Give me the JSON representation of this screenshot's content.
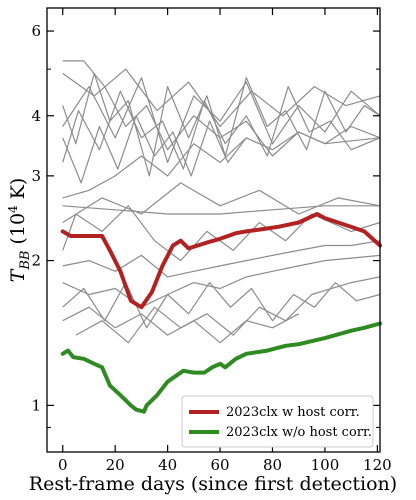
{
  "chart_data": {
    "type": "line",
    "xlabel": "Rest-frame days (since first detection)",
    "ylabel": {
      "main": "T",
      "sub": "BB",
      "rest": " (10",
      "sup": "4",
      "end": " K)"
    },
    "xlim": [
      -6,
      121
    ],
    "ylim": [
      0.8,
      6.7
    ],
    "yscale": "log",
    "grid": false,
    "x_ticks": [
      0,
      20,
      40,
      60,
      80,
      100,
      120
    ],
    "y_ticks": [
      1,
      2,
      3,
      4,
      6
    ],
    "legend_position": "lower-right",
    "series": [
      {
        "name": "2023clx w host corr.",
        "color": "#b22222",
        "x": [
          0,
          3,
          8,
          15,
          18,
          22,
          26,
          30,
          34,
          38,
          42,
          45,
          48,
          55,
          60,
          66,
          70,
          75,
          82,
          90,
          97,
          100,
          105,
          110,
          115,
          121
        ],
        "y": [
          2.3,
          2.25,
          2.25,
          2.25,
          2.1,
          1.9,
          1.65,
          1.6,
          1.72,
          1.95,
          2.15,
          2.2,
          2.12,
          2.18,
          2.22,
          2.28,
          2.3,
          2.32,
          2.35,
          2.4,
          2.5,
          2.45,
          2.4,
          2.35,
          2.3,
          2.15
        ]
      },
      {
        "name": "2023clx w/o host corr.",
        "color": "#2e8b22",
        "x": [
          0,
          2,
          4,
          8,
          12,
          15,
          18,
          22,
          26,
          28,
          31,
          32,
          36,
          40,
          43,
          46,
          50,
          54,
          57,
          60,
          62,
          66,
          70,
          78,
          85,
          90,
          100,
          110,
          115,
          121
        ],
        "y": [
          1.28,
          1.3,
          1.26,
          1.25,
          1.22,
          1.2,
          1.1,
          1.05,
          1.0,
          0.98,
          0.97,
          1.0,
          1.05,
          1.12,
          1.15,
          1.18,
          1.17,
          1.17,
          1.2,
          1.22,
          1.2,
          1.25,
          1.28,
          1.3,
          1.33,
          1.34,
          1.38,
          1.43,
          1.45,
          1.48
        ]
      }
    ],
    "background_series": [
      {
        "color": "#8c8c8c",
        "x": [
          0,
          10,
          20,
          30,
          40,
          50,
          60,
          70,
          80,
          90,
          100,
          110,
          121
        ],
        "y": [
          3.8,
          4.6,
          3.6,
          4.8,
          3.2,
          4.4,
          3.9,
          4.7,
          3.5,
          4.2,
          3.7,
          4.5,
          4.0
        ]
      },
      {
        "color": "#8c8c8c",
        "x": [
          0,
          5,
          12,
          18,
          25,
          33,
          40,
          48,
          55,
          62,
          70,
          78,
          85,
          93,
          100,
          108,
          115,
          121
        ],
        "y": [
          4.2,
          3.5,
          4.9,
          3.9,
          4.3,
          3.0,
          4.6,
          3.6,
          4.4,
          3.3,
          4.8,
          3.8,
          4.1,
          3.4,
          4.5,
          3.7,
          4.2,
          4.0
        ]
      },
      {
        "color": "#8c8c8c",
        "x": [
          0,
          6,
          14,
          22,
          30,
          38,
          46,
          54,
          62,
          70,
          78,
          86,
          94,
          102,
          110,
          121
        ],
        "y": [
          3.2,
          4.1,
          3.4,
          4.5,
          3.6,
          3.9,
          3.1,
          4.3,
          3.5,
          4.0,
          3.3,
          4.6,
          3.7,
          3.9,
          3.4,
          3.6
        ]
      },
      {
        "color": "#8c8c8c",
        "x": [
          0,
          8,
          16,
          24,
          32,
          40,
          50,
          60,
          70,
          80,
          90,
          100,
          110,
          121
        ],
        "y": [
          5.2,
          5.2,
          4.6,
          3.8,
          4.2,
          3.4,
          4.0,
          3.6,
          3.9,
          3.3,
          3.7,
          3.5,
          3.8,
          3.6
        ]
      },
      {
        "color": "#8c8c8c",
        "x": [
          0,
          10,
          20,
          30,
          40,
          50,
          60,
          70,
          80,
          90,
          100,
          121
        ],
        "y": [
          2.7,
          2.8,
          3.0,
          3.3,
          3.0,
          3.5,
          3.2,
          3.6,
          3.4,
          3.7,
          3.5,
          3.6
        ]
      },
      {
        "color": "#8c8c8c",
        "x": [
          0,
          20,
          40,
          60,
          80,
          100,
          121
        ],
        "y": [
          2.6,
          2.55,
          2.5,
          2.5,
          2.55,
          2.6,
          2.6
        ]
      },
      {
        "color": "#8c8c8c",
        "x": [
          0,
          15,
          30,
          45,
          60,
          75,
          90,
          105,
          121
        ],
        "y": [
          2.4,
          2.7,
          2.5,
          2.9,
          2.6,
          2.8,
          2.5,
          2.7,
          2.6
        ]
      },
      {
        "color": "#8c8c8c",
        "x": [
          0,
          5,
          15,
          25,
          35,
          45,
          55,
          65,
          75,
          85,
          95,
          110,
          121
        ],
        "y": [
          2.1,
          2.5,
          2.3,
          2.6,
          2.2,
          2.0,
          2.3,
          2.1,
          2.4,
          2.2,
          2.5,
          2.3,
          2.4
        ]
      },
      {
        "color": "#8c8c8c",
        "x": [
          0,
          10,
          20,
          30,
          40,
          50,
          60,
          70,
          80,
          90,
          100,
          110,
          121
        ],
        "y": [
          1.95,
          2.0,
          1.9,
          2.05,
          1.85,
          1.9,
          1.95,
          2.0,
          2.05,
          2.1,
          2.15,
          2.15,
          2.2
        ]
      },
      {
        "color": "#8c8c8c",
        "x": [
          0,
          10,
          20,
          30,
          40,
          50,
          60,
          70,
          80,
          90,
          100,
          121
        ],
        "y": [
          1.8,
          1.7,
          1.75,
          1.6,
          1.7,
          1.8,
          1.75,
          1.85,
          1.9,
          1.95,
          2.0,
          2.05
        ]
      },
      {
        "color": "#8c8c8c",
        "x": [
          0,
          8,
          16,
          24,
          32,
          40,
          48,
          56,
          64,
          72,
          80,
          88,
          96,
          104,
          112,
          121
        ],
        "y": [
          1.6,
          1.75,
          1.5,
          1.8,
          1.45,
          1.7,
          1.55,
          1.8,
          1.6,
          1.75,
          1.5,
          1.7,
          1.6,
          1.8,
          1.65,
          1.7
        ]
      },
      {
        "color": "#8c8c8c",
        "x": [
          0,
          10,
          20,
          30,
          40,
          50,
          60,
          70,
          80,
          90
        ],
        "y": [
          1.5,
          1.6,
          1.45,
          1.55,
          1.4,
          1.5,
          1.35,
          1.5,
          1.45,
          1.55
        ]
      },
      {
        "color": "#8c8c8c",
        "x": [
          5,
          15,
          25,
          35,
          45,
          55,
          65,
          75,
          85,
          95,
          110,
          121
        ],
        "y": [
          1.4,
          1.5,
          1.35,
          1.6,
          1.45,
          1.55,
          1.4,
          1.6,
          1.5,
          1.7,
          1.8,
          1.85
        ]
      },
      {
        "color": "#8c8c8c",
        "x": [
          0,
          12,
          24,
          36,
          48,
          60,
          72,
          84,
          96,
          108,
          121
        ],
        "y": [
          4.9,
          4.4,
          5.0,
          4.1,
          4.7,
          3.8,
          4.5,
          4.0,
          4.6,
          4.2,
          4.4
        ]
      },
      {
        "color": "#8c8c8c",
        "x": [
          0,
          7,
          14,
          21,
          28,
          35,
          42,
          49,
          56,
          63,
          70
        ],
        "y": [
          3.6,
          2.9,
          3.8,
          3.1,
          4.0,
          3.3,
          3.7,
          3.0,
          3.9,
          3.2,
          3.6
        ]
      }
    ]
  }
}
